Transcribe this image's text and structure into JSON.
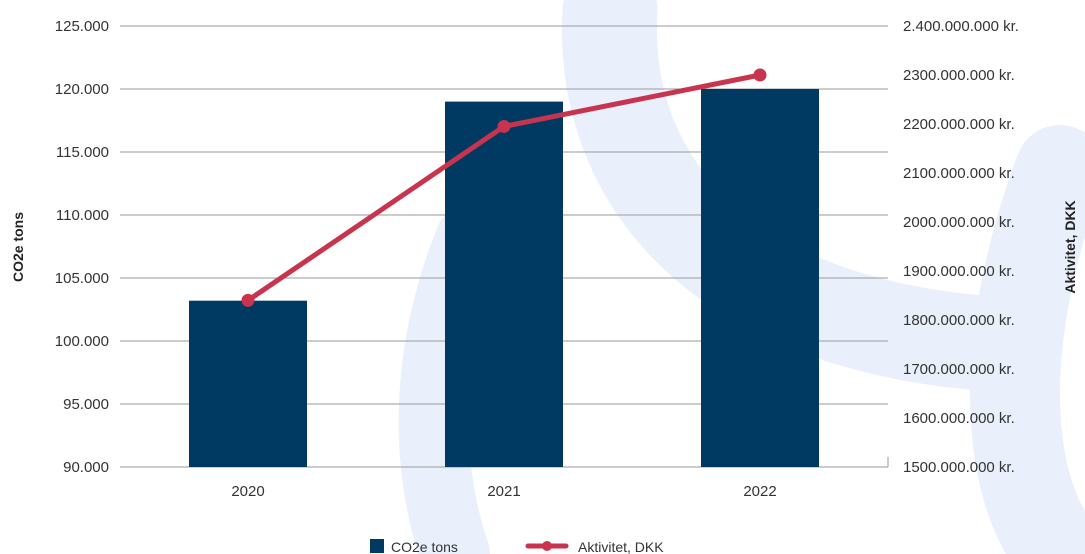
{
  "chart_data": {
    "type": "bar+line",
    "categories": [
      "2020",
      "2021",
      "2022"
    ],
    "series": [
      {
        "name": "CO2e tons",
        "type": "bar",
        "axis": "left",
        "color": "#003a63",
        "values": [
          103200,
          119000,
          120000
        ]
      },
      {
        "name": "Aktivitet, DKK",
        "type": "line",
        "axis": "right",
        "color": "#c8344d",
        "values": [
          1840000000,
          2195000000,
          2300000000
        ]
      }
    ],
    "ylabel": "CO2e tons",
    "y2label": "Aktivitet, DKK",
    "ylim": [
      90000,
      125000
    ],
    "y2lim": [
      1500000000,
      2400000000
    ],
    "yticks": [
      "90.000",
      "95.000",
      "100.000",
      "105.000",
      "110.000",
      "115.000",
      "120.000",
      "125.000"
    ],
    "y2ticks": [
      "1500.000.000 kr.",
      "1600.000.000 kr.",
      "1700.000.000 kr.",
      "1800.000.000 kr.",
      "1900.000.000 kr.",
      "2000.000.000 kr.",
      "2100.000.000 kr.",
      "2200.000.000 kr.",
      "2300.000.000 kr.",
      "2.400.000.000 kr."
    ],
    "grid": true,
    "legend_position": "bottom"
  }
}
